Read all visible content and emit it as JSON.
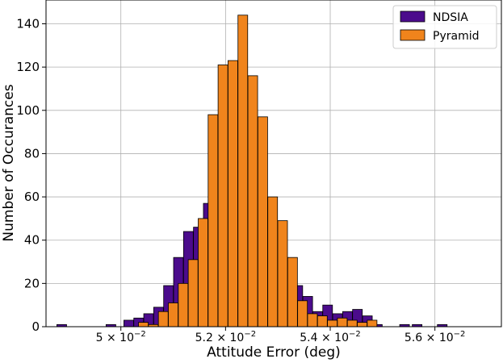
{
  "chart_data": {
    "type": "bar",
    "xlabel": "Attitude Error (deg)",
    "ylabel": "Number of Occurances",
    "x_tick_labels": [
      {
        "value": 0.05,
        "mantissa": "5",
        "exp": "−2"
      },
      {
        "value": 0.052,
        "mantissa": "5.2",
        "exp": "−2"
      },
      {
        "value": 0.054,
        "mantissa": "5.4",
        "exp": "−2"
      },
      {
        "value": 0.056,
        "mantissa": "5.6",
        "exp": "−2"
      }
    ],
    "y_ticks": [
      0,
      20,
      40,
      60,
      80,
      100,
      120,
      140
    ],
    "xlim": [
      0.04857,
      0.05727
    ],
    "ylim": [
      0,
      151
    ],
    "grid": true,
    "legend_position": "top-right",
    "series": [
      {
        "name": "NDSIA",
        "color": "#4b0b8c",
        "points": [
          [
            0.04887,
            1
          ],
          [
            0.04981,
            1
          ],
          [
            0.05015,
            3
          ],
          [
            0.05034,
            4
          ],
          [
            0.05053,
            6
          ],
          [
            0.05072,
            9
          ],
          [
            0.05091,
            19
          ],
          [
            0.0511,
            32
          ],
          [
            0.05129,
            44
          ],
          [
            0.05148,
            46
          ],
          [
            0.05167,
            57
          ],
          [
            0.05186,
            74
          ],
          [
            0.05205,
            94
          ],
          [
            0.05224,
            84
          ],
          [
            0.05243,
            82
          ],
          [
            0.05262,
            54
          ],
          [
            0.05281,
            55
          ],
          [
            0.053,
            34
          ],
          [
            0.05319,
            27
          ],
          [
            0.05338,
            19
          ],
          [
            0.05357,
            14
          ],
          [
            0.05376,
            7
          ],
          [
            0.05395,
            10
          ],
          [
            0.05414,
            6
          ],
          [
            0.05433,
            7
          ],
          [
            0.05452,
            8
          ],
          [
            0.05471,
            5
          ],
          [
            0.0549,
            1
          ],
          [
            0.05542,
            1
          ],
          [
            0.05566,
            1
          ],
          [
            0.05614,
            1
          ]
        ]
      },
      {
        "name": "Pyramid",
        "color": "#f0841c",
        "points": [
          [
            0.05043,
            2
          ],
          [
            0.05062,
            1
          ],
          [
            0.05081,
            7
          ],
          [
            0.051,
            11
          ],
          [
            0.05119,
            20
          ],
          [
            0.05138,
            31
          ],
          [
            0.05157,
            50
          ],
          [
            0.05176,
            98
          ],
          [
            0.05195,
            121
          ],
          [
            0.05214,
            123
          ],
          [
            0.05233,
            144
          ],
          [
            0.05252,
            116
          ],
          [
            0.05271,
            97
          ],
          [
            0.0529,
            60
          ],
          [
            0.05309,
            49
          ],
          [
            0.05328,
            32
          ],
          [
            0.05347,
            12
          ],
          [
            0.05366,
            6
          ],
          [
            0.05385,
            5
          ],
          [
            0.05404,
            3
          ],
          [
            0.05423,
            4
          ],
          [
            0.05442,
            3
          ],
          [
            0.05461,
            2
          ],
          [
            0.0548,
            3
          ],
          [
            0.05499,
            0
          ]
        ]
      }
    ]
  }
}
